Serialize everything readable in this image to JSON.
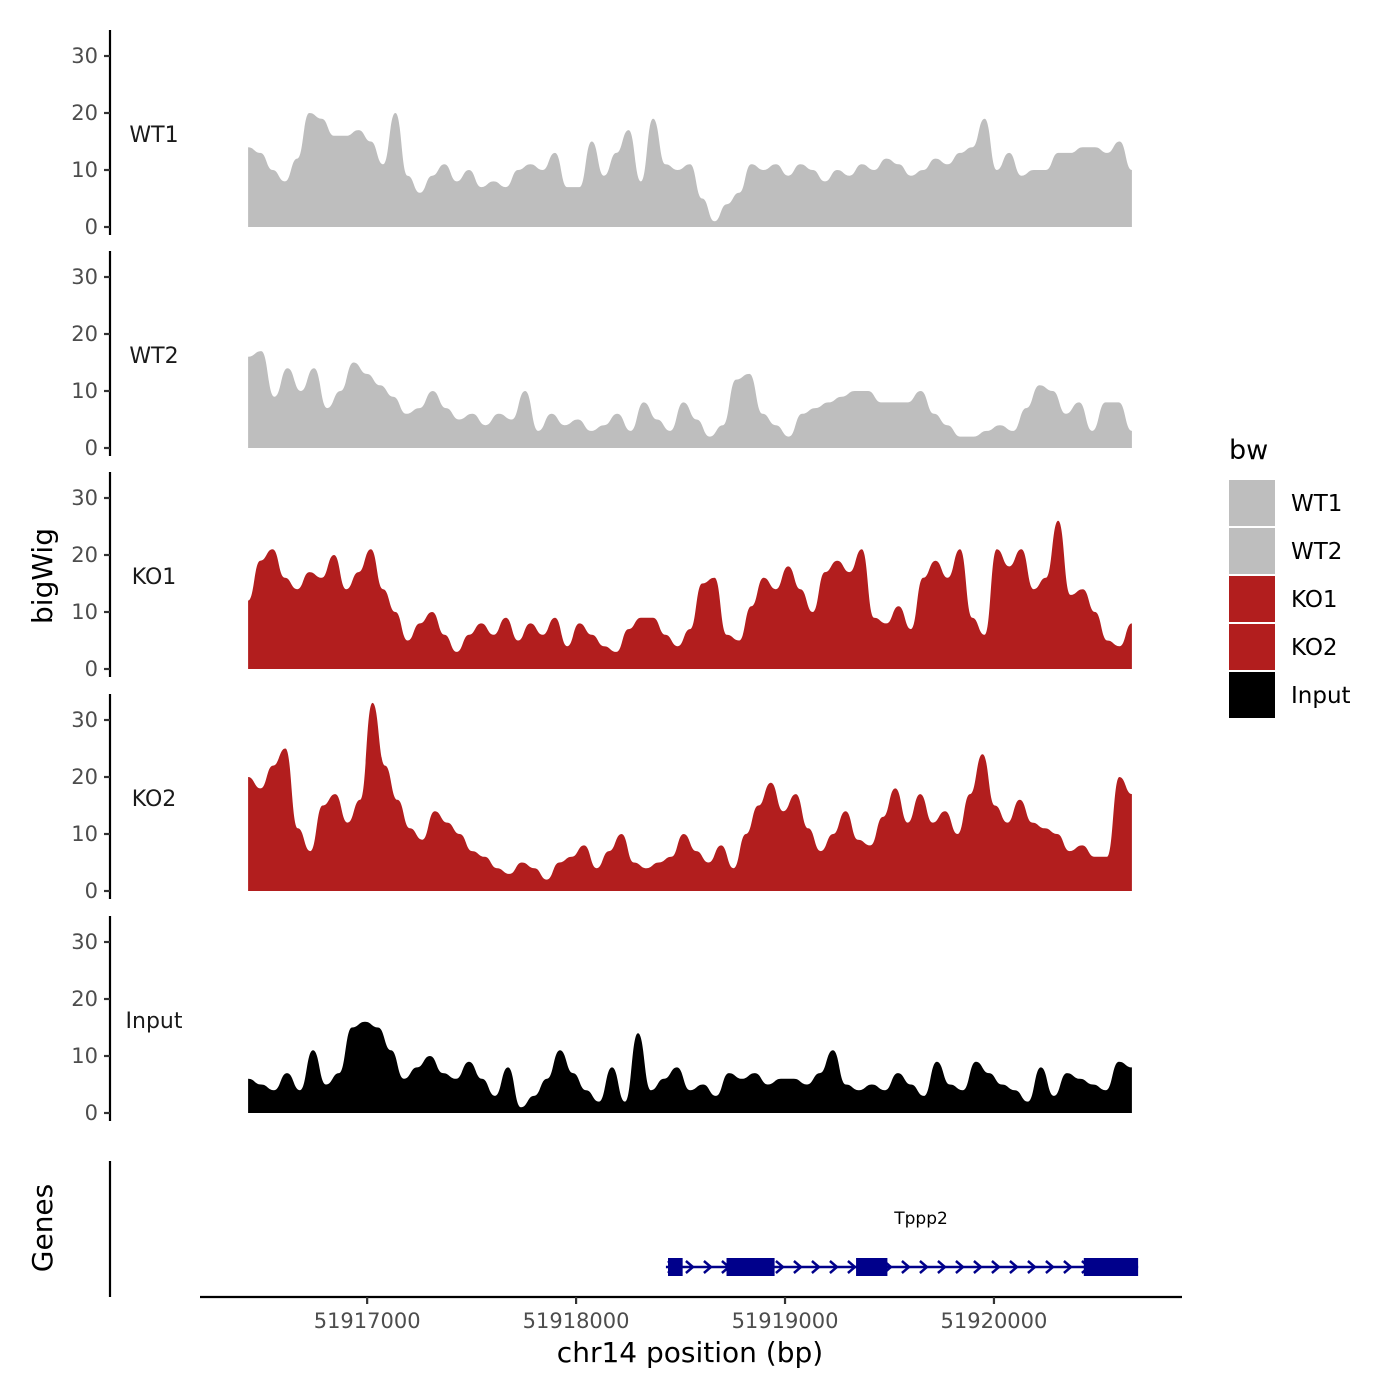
{
  "chart_data": {
    "type": "area",
    "ylabel": "bigWig",
    "xlabel": "chr14 position (bp)",
    "genes_label": "Genes",
    "ylim": [
      0,
      33
    ],
    "y_ticks": [
      0,
      10,
      20,
      30
    ],
    "xlim": [
      51916200,
      51920900
    ],
    "x_ticks": [
      51917000,
      51918000,
      51919000,
      51920000
    ],
    "x_tick_labels": [
      "51917000",
      "51918000",
      "51919000",
      "51920000"
    ],
    "signal_range": [
      51916430,
      51920660
    ],
    "legend": {
      "title": "bw",
      "entries": [
        {
          "label": "WT1",
          "color": "#bebebe"
        },
        {
          "label": "WT2",
          "color": "#bebebe"
        },
        {
          "label": "KO1",
          "color": "#b21e1e"
        },
        {
          "label": "KO2",
          "color": "#b21e1e"
        },
        {
          "label": "Input",
          "color": "#000000"
        }
      ]
    },
    "series": [
      {
        "name": "WT1",
        "color": "#bebebe",
        "values": [
          14,
          13,
          10,
          8,
          12,
          20,
          19,
          16,
          16,
          17,
          15,
          11,
          20,
          9,
          6,
          9,
          11,
          8,
          10,
          7,
          8,
          7,
          10,
          11,
          10,
          13,
          7,
          7,
          15,
          9,
          13,
          17,
          8,
          19,
          11,
          10,
          11,
          5,
          1,
          4,
          6,
          11,
          10,
          11,
          9,
          11,
          10,
          8,
          10,
          9,
          11,
          10,
          12,
          11,
          9,
          10,
          12,
          11,
          13,
          14,
          19,
          10,
          13,
          9,
          10,
          10,
          13,
          13,
          14,
          14,
          13,
          15,
          10
        ]
      },
      {
        "name": "WT2",
        "color": "#bebebe",
        "values": [
          16,
          17,
          9,
          14,
          10,
          14,
          7,
          10,
          15,
          13,
          11,
          9,
          6,
          7,
          10,
          7,
          5,
          6,
          4,
          6,
          5,
          10,
          3,
          6,
          4,
          5,
          3,
          4,
          6,
          3,
          8,
          5,
          3,
          8,
          5,
          2,
          4,
          12,
          13,
          6,
          4,
          2,
          6,
          7,
          8,
          9,
          10,
          10,
          8,
          8,
          8,
          10,
          6,
          4,
          2,
          2,
          3,
          4,
          3,
          7,
          11,
          10,
          6,
          8,
          3,
          8,
          8,
          3
        ]
      },
      {
        "name": "KO1",
        "color": "#b21e1e",
        "values": [
          12,
          19,
          21,
          16,
          14,
          17,
          16,
          20,
          14,
          17,
          21,
          14,
          10,
          5,
          8,
          10,
          6,
          3,
          6,
          8,
          6,
          9,
          5,
          8,
          6,
          9,
          4,
          8,
          6,
          4,
          3,
          7,
          9,
          9,
          6,
          4,
          7,
          15,
          16,
          6,
          5,
          11,
          16,
          14,
          18,
          14,
          10,
          17,
          19,
          17,
          21,
          9,
          8,
          11,
          7,
          16,
          19,
          16,
          21,
          9,
          6,
          21,
          18,
          21,
          14,
          16,
          26,
          13,
          14,
          10,
          5,
          4,
          8
        ]
      },
      {
        "name": "KO2",
        "color": "#b21e1e",
        "values": [
          20,
          18,
          22,
          25,
          11,
          7,
          15,
          17,
          12,
          16,
          33,
          22,
          16,
          11,
          9,
          14,
          12,
          10,
          7,
          6,
          4,
          3,
          5,
          4,
          2,
          5,
          6,
          8,
          4,
          7,
          10,
          5,
          4,
          5,
          6,
          10,
          7,
          5,
          8,
          4,
          10,
          15,
          19,
          14,
          17,
          11,
          7,
          10,
          14,
          9,
          8,
          13,
          18,
          12,
          17,
          12,
          14,
          10,
          17,
          24,
          15,
          12,
          16,
          12,
          11,
          10,
          7,
          8,
          6,
          6,
          20,
          17
        ]
      },
      {
        "name": "Input",
        "color": "#000000",
        "values": [
          6,
          5,
          4,
          7,
          4,
          11,
          5,
          7,
          15,
          16,
          15,
          11,
          6,
          8,
          10,
          7,
          6,
          9,
          6,
          3,
          8,
          1,
          3,
          6,
          11,
          7,
          4,
          2,
          8,
          2,
          14,
          4,
          6,
          8,
          4,
          5,
          3,
          7,
          6,
          7,
          5,
          6,
          6,
          5,
          7,
          11,
          5,
          4,
          5,
          4,
          7,
          5,
          3,
          9,
          5,
          4,
          9,
          7,
          5,
          4,
          2,
          8,
          3,
          7,
          6,
          5,
          4,
          9,
          8
        ]
      }
    ],
    "gene": {
      "name": "Tppp2",
      "start": 51918430,
      "end": 51920690,
      "color": "#00008b",
      "exons": [
        [
          51918440,
          51918510
        ],
        [
          51918720,
          51918950
        ],
        [
          51919340,
          51919490
        ],
        [
          51920430,
          51920690
        ]
      ]
    }
  }
}
